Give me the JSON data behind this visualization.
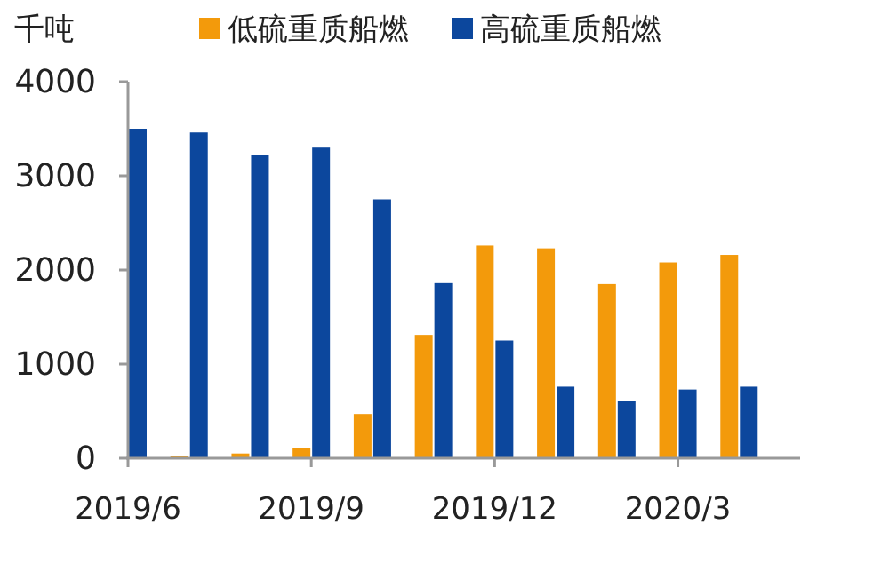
{
  "chart_data": {
    "type": "bar",
    "ylabel": "千吨",
    "categories": [
      "2019/6",
      null,
      null,
      "2019/9",
      null,
      null,
      "2019/12",
      null,
      null,
      "2020/3",
      null
    ],
    "series": [
      {
        "name": "低硫重质船燃",
        "color": "#f39a0b",
        "values": [
          0,
          25,
          50,
          110,
          470,
          1310,
          2260,
          2230,
          1850,
          2080,
          2160
        ]
      },
      {
        "name": "高硫重质船燃",
        "color": "#0c479d",
        "values": [
          3500,
          3460,
          3220,
          3300,
          2750,
          1860,
          1250,
          760,
          610,
          730,
          760
        ]
      }
    ],
    "ylim": [
      0,
      4000
    ],
    "yticks": [
      0,
      1000,
      2000,
      3000,
      4000
    ],
    "grid": false,
    "legend": "top right"
  }
}
